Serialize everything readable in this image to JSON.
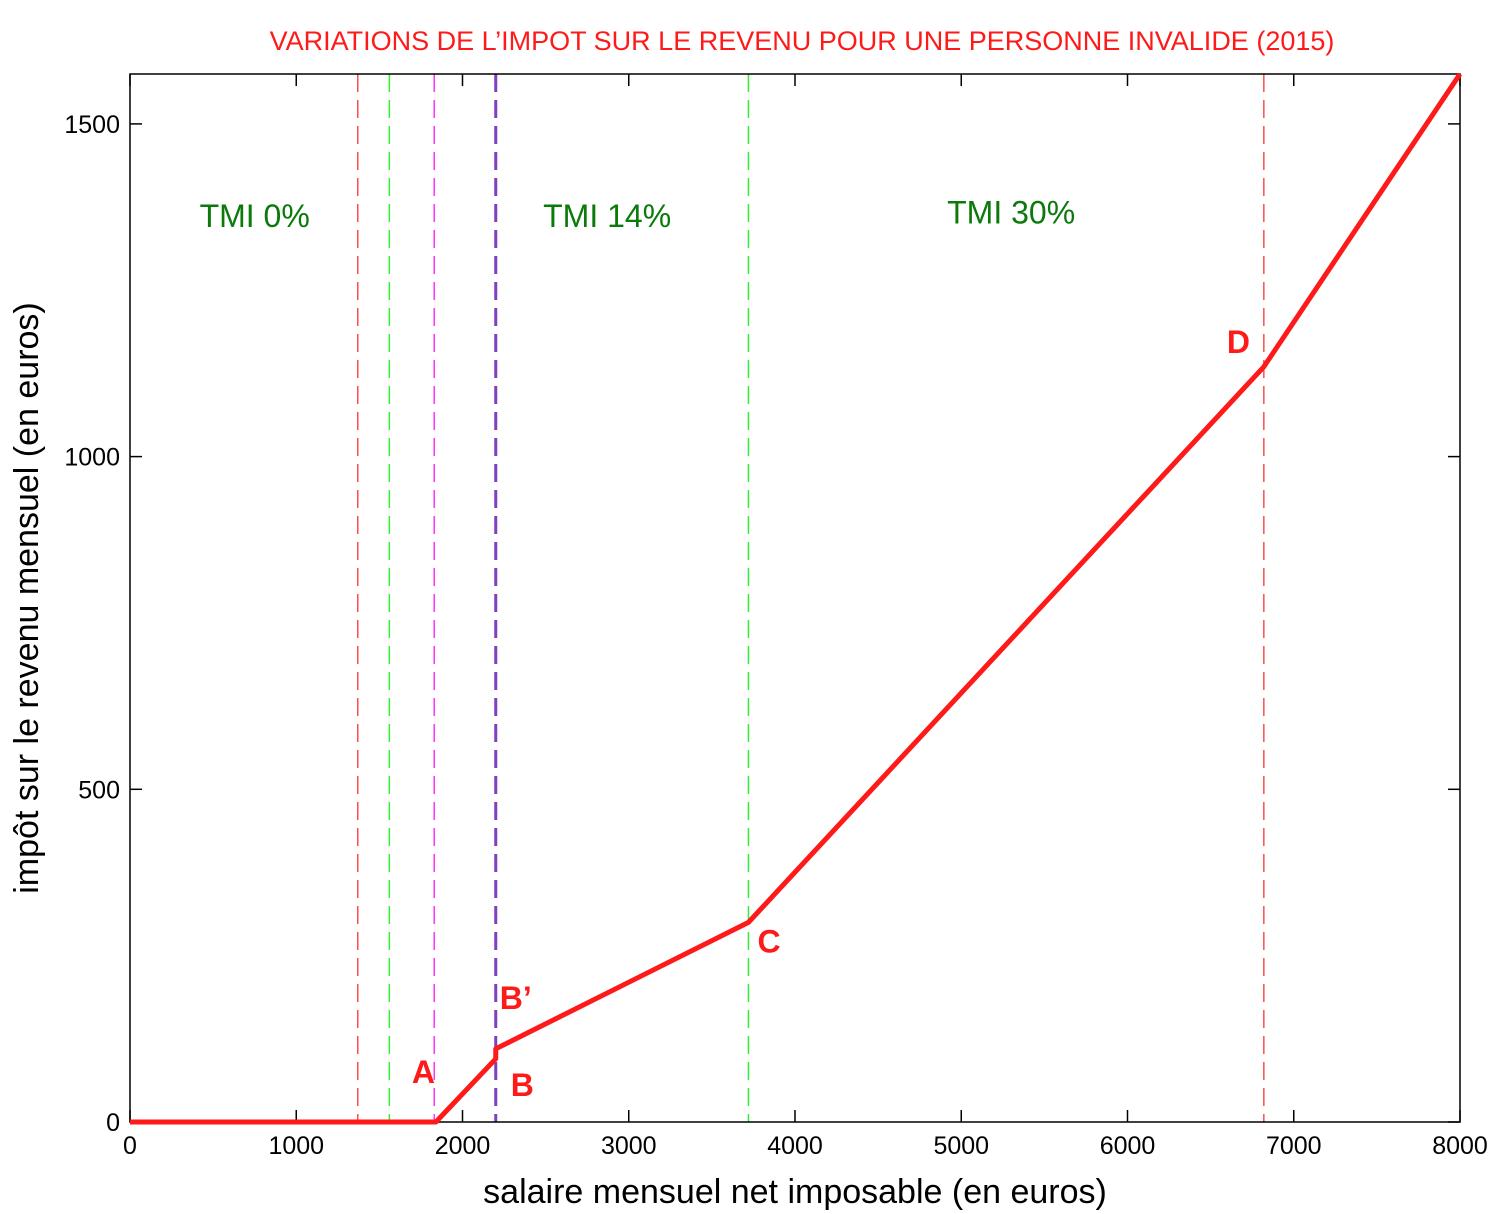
{
  "chart_data": {
    "type": "line",
    "title": "VARIATIONS DE L’IMPOT SUR LE REVENU POUR UNE PERSONNE INVALIDE (2015)",
    "xlabel": "salaire mensuel net imposable (en euros)",
    "ylabel": "impôt sur le revenu mensuel (en euros)",
    "xlim": [
      0,
      8000
    ],
    "ylim": [
      0,
      1575
    ],
    "xticks": [
      0,
      1000,
      2000,
      3000,
      4000,
      5000,
      6000,
      7000,
      8000
    ],
    "yticks": [
      0,
      500,
      1000,
      1500
    ],
    "grid": false,
    "legend": "none",
    "series": [
      {
        "color": "#ff1a1a",
        "x": [
          0,
          1840,
          2200,
          2200,
          3720,
          6820,
          8000
        ],
        "y": [
          0,
          0,
          95,
          110,
          300,
          1135,
          1575
        ]
      }
    ],
    "vlines": [
      {
        "x": 1370,
        "color": "#ff4d4d"
      },
      {
        "x": 1560,
        "color": "#33ee33"
      },
      {
        "x": 1830,
        "color": "#ff33ff"
      },
      {
        "x": 2200,
        "color": "#7f3fbf"
      },
      {
        "x": 3720,
        "color": "#33ee33"
      },
      {
        "x": 6820,
        "color": "#ff4d4d"
      }
    ],
    "regions": [
      {
        "label": "TMI 0%",
        "x": 750,
        "y": 1345
      },
      {
        "label": "TMI 14%",
        "x": 2870,
        "y": 1345
      },
      {
        "label": "TMI 30%",
        "x": 5300,
        "y": 1350
      }
    ],
    "points": [
      {
        "label": "A",
        "x": 1840,
        "y": 0
      },
      {
        "label": "B",
        "x": 2200,
        "y": 95
      },
      {
        "label": "B’",
        "x": 2200,
        "y": 110
      },
      {
        "label": "C",
        "x": 3720,
        "y": 300
      },
      {
        "label": "D",
        "x": 6820,
        "y": 1135
      }
    ],
    "colors": {
      "title": "#ff1a1a",
      "region_labels": "#0b7a0b",
      "point_labels": "#ff1a1a"
    }
  }
}
